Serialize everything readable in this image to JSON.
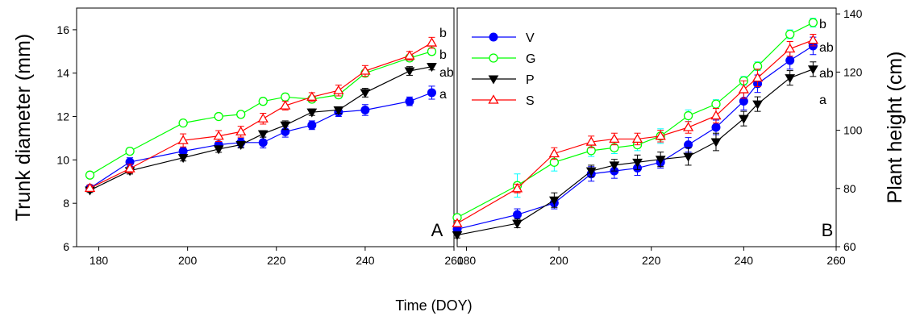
{
  "figure": {
    "shared_xlabel": "Time (DOY)",
    "legend": [
      {
        "name": "V",
        "color": "#0000ff",
        "marker": "filled-circle"
      },
      {
        "name": "G",
        "color": "#00ff00",
        "marker": "open-circle"
      },
      {
        "name": "P",
        "color": "#000000",
        "marker": "filled-triangle-down"
      },
      {
        "name": "S",
        "color": "#ff0000",
        "marker": "open-triangle-up"
      }
    ],
    "errorbar_colors": {
      "V": "#0000ff",
      "G": "#00ffff",
      "P": "#000000",
      "S": "#ff0000"
    }
  },
  "chart_data": [
    {
      "type": "line",
      "panel_label": "A",
      "ylabel": "Trunk diameter (mm)",
      "xlabel": "Time (DOY)",
      "xlim": [
        175,
        260
      ],
      "ylim": [
        6,
        17
      ],
      "xticks": [
        180,
        200,
        220,
        240,
        260
      ],
      "yticks": [
        6,
        8,
        10,
        12,
        14,
        16
      ],
      "grid": false,
      "x": [
        178,
        187,
        199,
        207,
        212,
        217,
        222,
        228,
        234,
        240,
        250,
        255
      ],
      "series": [
        {
          "name": "V",
          "values": [
            8.7,
            9.9,
            10.4,
            10.7,
            10.8,
            10.8,
            11.3,
            11.6,
            12.2,
            12.3,
            12.7,
            13.1
          ],
          "errors": [
            0.1,
            0.2,
            0.15,
            0.15,
            0.2,
            0.25,
            0.25,
            0.2,
            0.2,
            0.25,
            0.2,
            0.3
          ]
        },
        {
          "name": "G",
          "values": [
            9.3,
            10.4,
            11.7,
            12.0,
            12.1,
            12.7,
            12.9,
            12.8,
            13.0,
            14.0,
            14.7,
            15.0
          ],
          "errors": [
            0.1,
            0.15,
            0.1,
            0.1,
            0.1,
            0.15,
            0.15,
            0.15,
            0.15,
            0.15,
            0.15,
            0.15
          ]
        },
        {
          "name": "P",
          "values": [
            8.6,
            9.5,
            10.1,
            10.5,
            10.7,
            11.2,
            11.6,
            12.2,
            12.3,
            13.1,
            14.1,
            14.3
          ],
          "errors": [
            0.1,
            0.15,
            0.15,
            0.15,
            0.15,
            0.15,
            0.2,
            0.15,
            0.15,
            0.2,
            0.2,
            0.15
          ]
        },
        {
          "name": "S",
          "values": [
            8.7,
            9.6,
            10.9,
            11.1,
            11.3,
            11.9,
            12.5,
            12.9,
            13.2,
            14.1,
            14.8,
            15.4
          ],
          "errors": [
            0.15,
            0.2,
            0.3,
            0.25,
            0.25,
            0.25,
            0.2,
            0.2,
            0.25,
            0.25,
            0.2,
            0.25
          ]
        }
      ],
      "group_letters": [
        {
          "series": "S",
          "text": "b"
        },
        {
          "series": "G",
          "text": "b"
        },
        {
          "series": "P",
          "text": "ab"
        },
        {
          "series": "V",
          "text": "a"
        }
      ]
    },
    {
      "type": "line",
      "panel_label": "B",
      "ylabel": "Plant height (cm)",
      "xlabel": "Time (DOY)",
      "xlim": [
        178,
        260
      ],
      "ylim": [
        60,
        142
      ],
      "xticks": [
        180,
        200,
        220,
        240,
        260
      ],
      "yticks": [
        60,
        80,
        100,
        120,
        140
      ],
      "grid": false,
      "x": [
        178,
        191,
        199,
        207,
        212,
        217,
        222,
        228,
        234,
        240,
        243,
        250,
        255
      ],
      "series": [
        {
          "name": "V",
          "values": [
            66,
            71,
            75,
            85,
            86,
            87,
            89,
            95,
            101,
            110,
            116,
            124,
            129
          ],
          "errors": [
            1.5,
            2,
            2,
            2.5,
            2.5,
            2.5,
            2,
            2.5,
            2.5,
            3,
            3,
            3,
            3
          ]
        },
        {
          "name": "G",
          "values": [
            70,
            81,
            89,
            93,
            94,
            95,
            98,
            105,
            109,
            117,
            122,
            133,
            137
          ],
          "errors": [
            1,
            4,
            3,
            2,
            2,
            2,
            2.5,
            2,
            1.5,
            1.5,
            1.5,
            1.5,
            1.5
          ]
        },
        {
          "name": "P",
          "values": [
            64,
            68,
            76,
            86,
            88,
            89,
            90,
            91,
            96,
            104,
            109,
            118,
            121
          ],
          "errors": [
            1,
            1.5,
            2.5,
            2,
            2,
            2.5,
            2.5,
            3,
            3,
            2.5,
            2.5,
            2.5,
            2.5
          ]
        },
        {
          "name": "S",
          "values": [
            68,
            80,
            92,
            96,
            97,
            97,
            98,
            101,
            105,
            114,
            118,
            128,
            131
          ],
          "errors": [
            1,
            1.5,
            2,
            2,
            2,
            2,
            2,
            2,
            2.5,
            3,
            3,
            2.5,
            2
          ]
        }
      ],
      "group_letters": [
        {
          "series": "G",
          "text": "b"
        },
        {
          "series": "S",
          "text": "ab"
        },
        {
          "series": "V",
          "text": "ab"
        },
        {
          "series": "P",
          "text": "a"
        }
      ]
    }
  ]
}
